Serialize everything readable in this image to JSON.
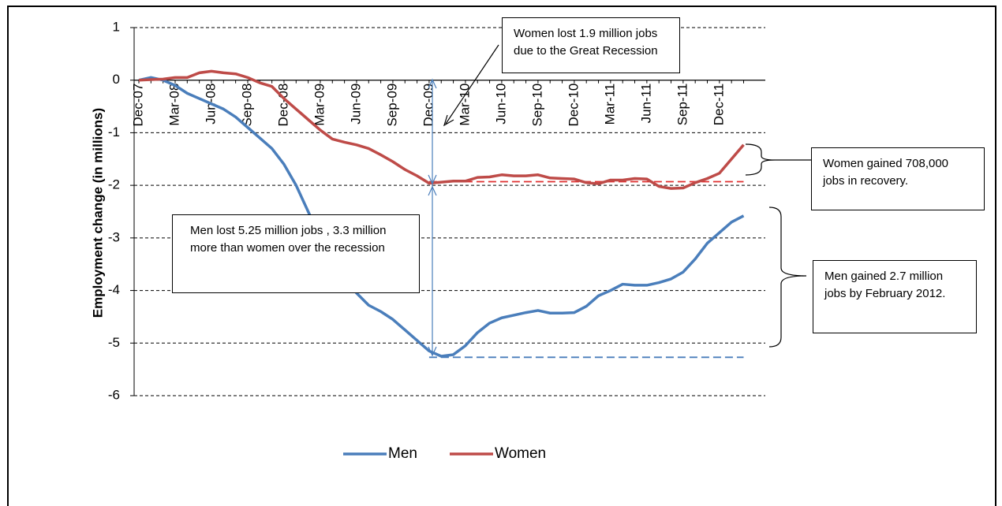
{
  "chart_data": {
    "type": "line",
    "y_label": "Employment change (in millions)",
    "categories": [
      "Dec-07",
      null,
      null,
      "Mar-08",
      null,
      null,
      "Jun-08",
      null,
      null,
      "Sep-08",
      null,
      null,
      "Dec-08",
      null,
      null,
      "Mar-09",
      null,
      null,
      "Jun-09",
      null,
      null,
      "Sep-09",
      null,
      null,
      "Dec-09",
      null,
      null,
      "Mar-10",
      null,
      null,
      "Jun-10",
      null,
      null,
      "Sep-10",
      null,
      null,
      "Dec-10",
      null,
      null,
      "Mar-11",
      null,
      null,
      "Jun-11",
      null,
      null,
      "Sep-11",
      null,
      null,
      "Dec-11",
      null,
      null
    ],
    "series": [
      {
        "name": "Men",
        "color": "#4a7ebb",
        "values": [
          0,
          0.05,
          0,
          -0.1,
          -0.25,
          -0.35,
          -0.45,
          -0.55,
          -0.7,
          -0.9,
          -1.1,
          -1.3,
          -1.6,
          -2.0,
          -2.5,
          -3.0,
          -3.4,
          -3.75,
          -4.05,
          -4.28,
          -4.4,
          -4.55,
          -4.75,
          -4.95,
          -5.15,
          -5.25,
          -5.22,
          -5.05,
          -4.8,
          -4.62,
          -4.52,
          -4.47,
          -4.42,
          -4.38,
          -4.43,
          -4.43,
          -4.42,
          -4.3,
          -4.1,
          -4.0,
          -3.88,
          -3.9,
          -3.9,
          -3.85,
          -3.78,
          -3.65,
          -3.4,
          -3.1,
          -2.9,
          -2.7,
          -2.58
        ]
      },
      {
        "name": "Women",
        "color": "#be4b48",
        "values": [
          0,
          0.01,
          0.02,
          0.05,
          0.05,
          0.14,
          0.17,
          0.14,
          0.12,
          0.05,
          -0.05,
          -0.12,
          -0.35,
          -0.55,
          -0.75,
          -0.95,
          -1.12,
          -1.18,
          -1.23,
          -1.3,
          -1.42,
          -1.55,
          -1.7,
          -1.82,
          -1.96,
          -1.94,
          -1.92,
          -1.92,
          -1.85,
          -1.84,
          -1.8,
          -1.82,
          -1.82,
          -1.8,
          -1.86,
          -1.87,
          -1.88,
          -1.95,
          -1.97,
          -1.9,
          -1.9,
          -1.87,
          -1.88,
          -2.02,
          -2.06,
          -2.05,
          -1.95,
          -1.87,
          -1.77,
          -1.5,
          -1.23
        ]
      }
    ],
    "reference_lines": [
      {
        "value": -1.93,
        "color": "#e03030"
      },
      {
        "value": -5.27,
        "color": "#4a7ebb"
      }
    ],
    "ylim": [
      -6,
      1
    ],
    "yticks": [
      -6,
      -5,
      -4,
      -3,
      -2,
      -1,
      0,
      1
    ],
    "grid": true,
    "legend": "bottom",
    "annotations": [
      {
        "text": "Women lost 1.9 million jobs due to the Great Recession"
      },
      {
        "text": "Women gained 708,000 jobs in recovery."
      },
      {
        "text": "Men lost 5.25 million  jobs , 3.3 million more than women over the recession"
      },
      {
        "text": "Men gained 2.7 million jobs by February 2012."
      }
    ]
  }
}
